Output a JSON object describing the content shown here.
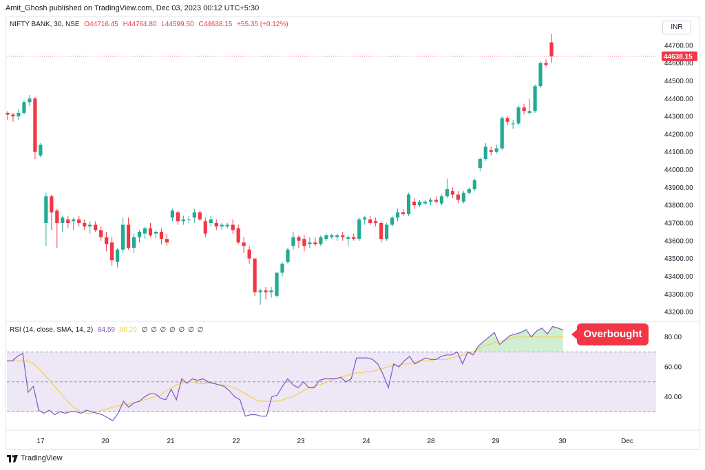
{
  "header": {
    "publisher": "Amit_Ghosh published on TradingView.com, Dec 03, 2023 00:12 UTC+5:30"
  },
  "legend": {
    "symbol": "NIFTY BANK, 30, NSE",
    "open": "O44716.45",
    "high": "H44764.80",
    "low": "L44599.50",
    "close": "C44638.15",
    "change": "+55.35 (+0.12%)"
  },
  "currency": "INR",
  "last_price_label": "44638.15",
  "rsi_legend": {
    "label": "RSI (14, close, SMA, 14, 2)",
    "rsi_value": "84.59",
    "sma_value": "80.29",
    "zeros": "∅ ∅ ∅ ∅ ∅ ∅ ∅"
  },
  "annotation": {
    "text": "Overbought"
  },
  "footer": {
    "brand": "TradingView"
  },
  "colors": {
    "up": "#22ab94",
    "down": "#f23645",
    "rsi_line": "#7e57c2",
    "rsi_sma": "#f5d342",
    "rsi_band": "#ede7f6",
    "overbought_fill": "#cdeccd"
  },
  "chart_data": [
    {
      "type": "candlestick",
      "title": "NIFTY BANK, 30, NSE",
      "y_range": [
        43150,
        44800
      ],
      "y_ticks": [
        43200,
        43300,
        43400,
        43500,
        43600,
        43700,
        43800,
        43900,
        44000,
        44100,
        44200,
        44300,
        44400,
        44500,
        44600,
        44700
      ],
      "y_tick_labels": [
        "43200.00",
        "43300.00",
        "43400.00",
        "43500.00",
        "43600.00",
        "43700.00",
        "43800.00",
        "43900.00",
        "44000.00",
        "44100.00",
        "44200.00",
        "44300.00",
        "44400.00",
        "44500.00",
        "44600.00",
        "44700.00"
      ],
      "x_labels": [
        "17",
        "20",
        "21",
        "22",
        "23",
        "24",
        "28",
        "29",
        "30",
        "Dec"
      ],
      "last_close": 44638.15,
      "candles_ohlc": [
        [
          44320,
          44330,
          44280,
          44310
        ],
        [
          44310,
          44320,
          44270,
          44300
        ],
        [
          44300,
          44340,
          44280,
          44320
        ],
        [
          44320,
          44390,
          44310,
          44380
        ],
        [
          44380,
          44420,
          44360,
          44400
        ],
        [
          44400,
          44410,
          44060,
          44100
        ],
        [
          44080,
          44150,
          44070,
          44140
        ],
        [
          43700,
          43870,
          43570,
          43850
        ],
        [
          43850,
          43860,
          43660,
          43760
        ],
        [
          43770,
          43780,
          43560,
          43700
        ],
        [
          43700,
          43740,
          43650,
          43730
        ],
        [
          43720,
          43740,
          43670,
          43700
        ],
        [
          43710,
          43730,
          43660,
          43720
        ],
        [
          43720,
          43740,
          43680,
          43700
        ],
        [
          43700,
          43720,
          43660,
          43680
        ],
        [
          43680,
          43710,
          43640,
          43690
        ],
        [
          43690,
          43710,
          43650,
          43660
        ],
        [
          43660,
          43680,
          43600,
          43620
        ],
        [
          43620,
          43650,
          43540,
          43580
        ],
        [
          43590,
          43620,
          43460,
          43490
        ],
        [
          43480,
          43560,
          43450,
          43550
        ],
        [
          43550,
          43730,
          43530,
          43690
        ],
        [
          43690,
          43730,
          43550,
          43560
        ],
        [
          43560,
          43640,
          43530,
          43620
        ],
        [
          43620,
          43660,
          43590,
          43650
        ],
        [
          43640,
          43680,
          43610,
          43670
        ],
        [
          43670,
          43700,
          43620,
          43630
        ],
        [
          43640,
          43660,
          43610,
          43650
        ],
        [
          43650,
          43670,
          43580,
          43610
        ],
        [
          43610,
          43640,
          43570,
          43590
        ],
        [
          43730,
          43780,
          43710,
          43770
        ],
        [
          43760,
          43770,
          43690,
          43710
        ],
        [
          43710,
          43740,
          43690,
          43720
        ],
        [
          43720,
          43740,
          43700,
          43720
        ],
        [
          43730,
          43780,
          43700,
          43760
        ],
        [
          43760,
          43770,
          43710,
          43720
        ],
        [
          43710,
          43730,
          43620,
          43640
        ],
        [
          43700,
          43740,
          43680,
          43720
        ],
        [
          43700,
          43720,
          43660,
          43680
        ],
        [
          43680,
          43700,
          43660,
          43690
        ],
        [
          43680,
          43700,
          43670,
          43690
        ],
        [
          43690,
          43720,
          43640,
          43660
        ],
        [
          43670,
          43690,
          43580,
          43590
        ],
        [
          43590,
          43620,
          43530,
          43570
        ],
        [
          43550,
          43570,
          43470,
          43500
        ],
        [
          43500,
          43500,
          43290,
          43310
        ],
        [
          43310,
          43330,
          43240,
          43320
        ],
        [
          43320,
          43340,
          43270,
          43310
        ],
        [
          43310,
          43340,
          43280,
          43320
        ],
        [
          43290,
          43420,
          43280,
          43420
        ],
        [
          43420,
          43480,
          43400,
          43470
        ],
        [
          43480,
          43560,
          43470,
          43550
        ],
        [
          43570,
          43650,
          43550,
          43620
        ],
        [
          43620,
          43630,
          43560,
          43600
        ],
        [
          43610,
          43630,
          43540,
          43570
        ],
        [
          43580,
          43620,
          43560,
          43590
        ],
        [
          43590,
          43620,
          43570,
          43580
        ],
        [
          43580,
          43630,
          43570,
          43620
        ],
        [
          43610,
          43640,
          43600,
          43630
        ],
        [
          43620,
          43640,
          43610,
          43630
        ],
        [
          43620,
          43640,
          43600,
          43630
        ],
        [
          43630,
          43650,
          43600,
          43620
        ],
        [
          43610,
          43630,
          43570,
          43620
        ],
        [
          43620,
          43640,
          43600,
          43610
        ],
        [
          43610,
          43730,
          43600,
          43720
        ],
        [
          43720,
          43740,
          43690,
          43730
        ],
        [
          43720,
          43740,
          43690,
          43700
        ],
        [
          43710,
          43730,
          43680,
          43700
        ],
        [
          43700,
          43710,
          43590,
          43610
        ],
        [
          43610,
          43700,
          43600,
          43690
        ],
        [
          43690,
          43740,
          43680,
          43730
        ],
        [
          43730,
          43780,
          43710,
          43760
        ],
        [
          43760,
          43780,
          43740,
          43750
        ],
        [
          43750,
          43870,
          43740,
          43860
        ],
        [
          43820,
          43840,
          43780,
          43800
        ],
        [
          43800,
          43830,
          43790,
          43820
        ],
        [
          43810,
          43830,
          43800,
          43820
        ],
        [
          43820,
          43840,
          43800,
          43830
        ],
        [
          43830,
          43850,
          43810,
          43820
        ],
        [
          43810,
          43860,
          43800,
          43850
        ],
        [
          43850,
          43950,
          43840,
          43890
        ],
        [
          43880,
          43900,
          43840,
          43860
        ],
        [
          43860,
          43880,
          43810,
          43830
        ],
        [
          43820,
          43880,
          43810,
          43870
        ],
        [
          43870,
          43900,
          43860,
          43890
        ],
        [
          43890,
          43950,
          43880,
          43940
        ],
        [
          44010,
          44070,
          43990,
          44060
        ],
        [
          44060,
          44150,
          44050,
          44130
        ],
        [
          44110,
          44130,
          44080,
          44100
        ],
        [
          44100,
          44140,
          44090,
          44120
        ],
        [
          44120,
          44300,
          44110,
          44290
        ],
        [
          44290,
          44300,
          44250,
          44270
        ],
        [
          44260,
          44280,
          44230,
          44260
        ],
        [
          44260,
          44360,
          44250,
          44350
        ],
        [
          44350,
          44370,
          44310,
          44330
        ],
        [
          44320,
          44400,
          44310,
          44330
        ],
        [
          44330,
          44480,
          44320,
          44470
        ],
        [
          44470,
          44610,
          44460,
          44600
        ],
        [
          44600,
          44620,
          44580,
          44590
        ],
        [
          44716.45,
          44764.8,
          44599.5,
          44638.15
        ]
      ]
    },
    {
      "type": "line",
      "title": "RSI (14, close, SMA, 14, 2)",
      "y_range": [
        20,
        90
      ],
      "y_ticks": [
        40,
        60,
        80
      ],
      "y_tick_labels": [
        "40.00",
        "60.00",
        "80.00"
      ],
      "bands": [
        30,
        50,
        70
      ],
      "series": [
        {
          "values": [
            64,
            64,
            67,
            69,
            43,
            47,
            31,
            29,
            31,
            28,
            30,
            29,
            30,
            30,
            29,
            31,
            30,
            29,
            28,
            26,
            24,
            29,
            37,
            33,
            36,
            37,
            40,
            42,
            42,
            39,
            38,
            45,
            38,
            52,
            49,
            52,
            51,
            52,
            50,
            49,
            48,
            47,
            44,
            40,
            38,
            27,
            28,
            28,
            27,
            27,
            40,
            41,
            47,
            52,
            48,
            46,
            50,
            46,
            46,
            51,
            52,
            52,
            52,
            53,
            50,
            52,
            66,
            66,
            66,
            65,
            62,
            55,
            46,
            62,
            60,
            64,
            67,
            62,
            64,
            66,
            65,
            65,
            67,
            68,
            68,
            70,
            62,
            70,
            68,
            74,
            77,
            80,
            83,
            75,
            78,
            81,
            82,
            83,
            85,
            80,
            84,
            86,
            82,
            87,
            86,
            84.59
          ]
        },
        {
          "values": [
            64,
            64,
            64,
            64,
            64,
            62,
            59,
            55,
            51,
            47,
            43,
            39,
            35,
            32,
            30,
            29,
            29,
            30,
            31,
            32,
            33,
            34,
            35,
            35,
            36,
            37,
            38,
            39,
            40,
            41,
            44,
            46,
            48,
            49,
            50,
            50,
            49,
            49,
            49,
            49,
            48,
            48,
            47,
            46,
            44,
            42,
            40,
            38,
            37,
            37,
            37,
            37,
            38,
            39,
            40,
            42,
            44,
            46,
            47,
            48,
            49,
            51,
            52,
            53,
            54,
            55,
            56,
            56,
            57,
            57,
            58,
            59,
            60,
            61,
            61,
            62,
            62,
            63,
            64,
            64,
            64,
            65,
            65,
            65,
            66,
            67,
            68,
            69,
            70,
            72,
            74,
            75,
            76,
            77,
            78,
            79,
            80,
            80,
            80,
            80,
            80,
            80,
            80,
            80,
            80,
            80.29
          ]
        }
      ]
    }
  ]
}
